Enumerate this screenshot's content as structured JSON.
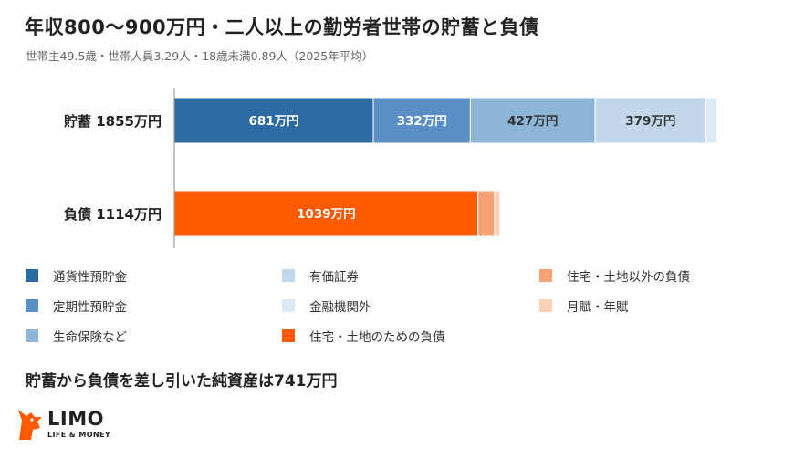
{
  "title": "年収800～900万円・二人以上の勤労者世帯の貯蓄と負債",
  "subtitle": "世帯主49.5歳・世帯人員3.29人・18歳未満0.89人（2025年平均）",
  "summary": "貯蓄から負債を差し引いた純資産は741万円",
  "logo": {
    "name": "LIMO",
    "tagline": "LIFE & MONEY"
  },
  "colors": {
    "deposits_ordinary": "#2b6aa3",
    "deposits_fixed": "#5a8fc5",
    "insurance": "#8db5d8",
    "securities": "#c2d8ea",
    "financial_other": "#dde9f3",
    "housing_debt": "#ff5a00",
    "other_debt": "#f7a274",
    "monthly_installments": "#fbd0b6",
    "axis": "#999999"
  },
  "chart_data": {
    "type": "bar",
    "orientation": "horizontal",
    "stacked": true,
    "categories": [
      "貯蓄 1855万円",
      "負債 1114万円"
    ],
    "unit": "万円",
    "xlim": [
      0,
      1855
    ],
    "series": [
      {
        "name": "通貨性預貯金",
        "color_key": "deposits_ordinary",
        "values": [
          681,
          0
        ],
        "labels": [
          "681万円",
          ""
        ]
      },
      {
        "name": "定期性預貯金",
        "color_key": "deposits_fixed",
        "values": [
          332,
          0
        ],
        "labels": [
          "332万円",
          ""
        ]
      },
      {
        "name": "生命保険など",
        "color_key": "insurance",
        "values": [
          427,
          0
        ],
        "labels": [
          "427万円",
          ""
        ]
      },
      {
        "name": "有価証券",
        "color_key": "securities",
        "values": [
          379,
          0
        ],
        "labels": [
          "379万円",
          ""
        ]
      },
      {
        "name": "金融機関外",
        "color_key": "financial_other",
        "values": [
          36,
          0
        ],
        "labels": [
          "",
          ""
        ]
      },
      {
        "name": "住宅・土地のための負債",
        "color_key": "housing_debt",
        "values": [
          0,
          1039
        ],
        "labels": [
          "",
          "1039万円"
        ]
      },
      {
        "name": "住宅・土地以外の負債",
        "color_key": "other_debt",
        "values": [
          0,
          57
        ],
        "labels": [
          "",
          ""
        ]
      },
      {
        "name": "月賦・年賦",
        "color_key": "monthly_installments",
        "values": [
          0,
          18
        ],
        "labels": [
          "",
          ""
        ]
      }
    ],
    "legend": {
      "placement": "bottom",
      "order": [
        "通貨性預貯金",
        "定期性預貯金",
        "生命保険など",
        "有価証券",
        "金融機関外",
        "住宅・土地のための負債",
        "住宅・土地以外の負債",
        "月賦・年賦"
      ]
    }
  }
}
